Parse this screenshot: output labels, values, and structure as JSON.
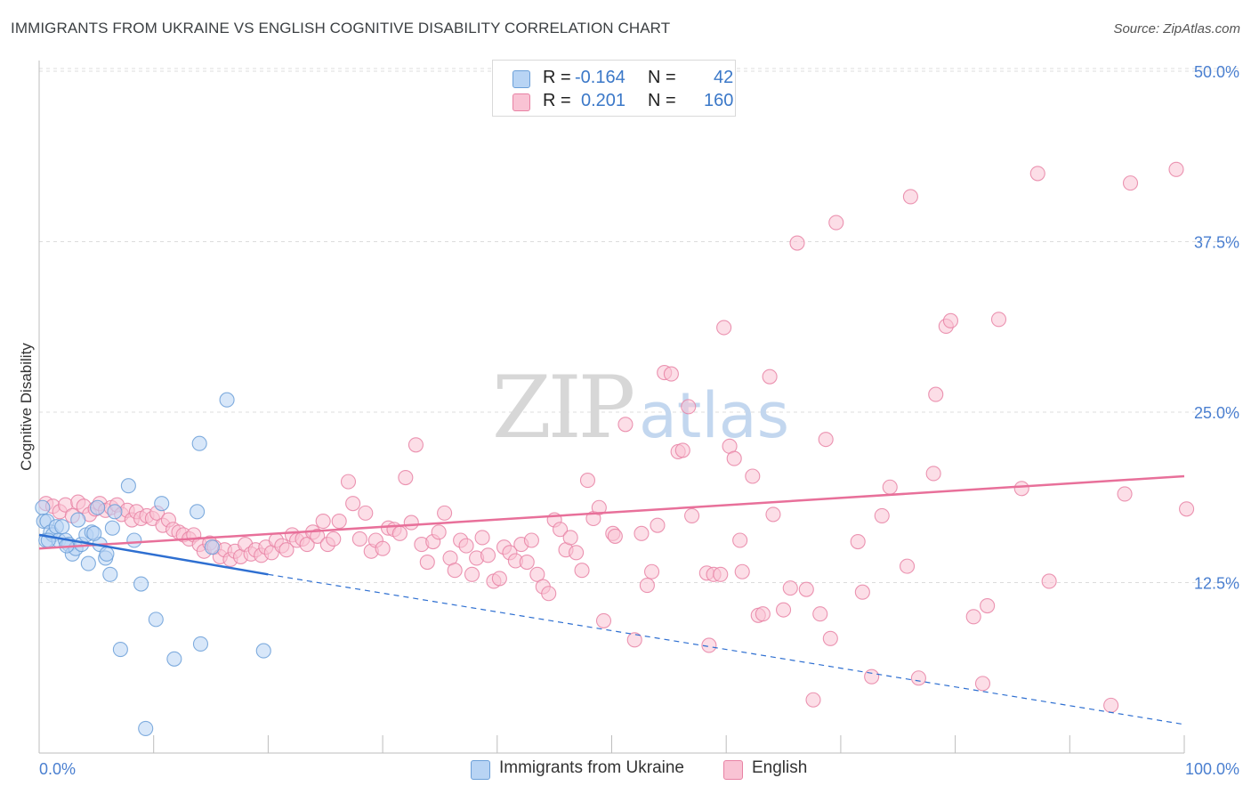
{
  "title": "IMMIGRANTS FROM UKRAINE VS ENGLISH COGNITIVE DISABILITY CORRELATION CHART",
  "source": "Source: ZipAtlas.com",
  "watermark": {
    "zip": "ZIP",
    "atlas": "atlas"
  },
  "legend": {
    "r_label": "R =",
    "n_label": "N =",
    "rows": [
      {
        "r": "-0.164",
        "n": "42",
        "color": "#b8d4f4",
        "border": "#6b9fd8"
      },
      {
        "r": "0.201",
        "n": "160",
        "color": "#f9c3d4",
        "border": "#e882a4"
      }
    ]
  },
  "bottom_legend": [
    {
      "label": "Immigrants from Ukraine",
      "color": "#b8d4f4",
      "border": "#6b9fd8"
    },
    {
      "label": "English",
      "color": "#f9c3d4",
      "border": "#e882a4"
    }
  ],
  "chart_data": {
    "type": "scatter",
    "title": "IMMIGRANTS FROM UKRAINE VS ENGLISH COGNITIVE DISABILITY CORRELATION CHART",
    "xlabel": "",
    "ylabel": "Cognitive Disability",
    "xlim": [
      0,
      100
    ],
    "ylim": [
      0,
      50
    ],
    "x_tick_labels": [
      "0.0%",
      "100.0%"
    ],
    "y_ticks": [
      12.5,
      25.0,
      37.5,
      50.0
    ],
    "y_tick_labels": [
      "12.5%",
      "25.0%",
      "37.5%",
      "50.0%"
    ],
    "grid": true,
    "legend_position": "top-center",
    "series": [
      {
        "name": "Immigrants from Ukraine",
        "color": "#6b9fd8",
        "fill": "#b8d4f4",
        "trend": {
          "x0": 0,
          "y0": 16.0,
          "x1": 20,
          "y1": 13.1,
          "dash_to_x": 100,
          "dash_to_y": 2.1,
          "color": "#2e6fd1"
        },
        "points": [
          [
            0.3,
            18.0
          ],
          [
            0.4,
            17.0
          ],
          [
            0.6,
            15.6
          ],
          [
            0.7,
            17.0
          ],
          [
            1.0,
            16.2
          ],
          [
            1.2,
            16.0
          ],
          [
            1.5,
            16.6
          ],
          [
            1.7,
            15.6
          ],
          [
            2.0,
            16.6
          ],
          [
            2.3,
            15.6
          ],
          [
            2.6,
            15.3
          ],
          [
            2.9,
            14.6
          ],
          [
            3.2,
            15.0
          ],
          [
            3.4,
            17.1
          ],
          [
            3.7,
            15.3
          ],
          [
            4.1,
            16.0
          ],
          [
            4.3,
            13.9
          ],
          [
            4.6,
            16.2
          ],
          [
            5.1,
            18.0
          ],
          [
            5.3,
            15.3
          ],
          [
            5.8,
            14.3
          ],
          [
            5.9,
            14.6
          ],
          [
            6.2,
            13.1
          ],
          [
            6.4,
            16.5
          ],
          [
            6.6,
            17.7
          ],
          [
            7.1,
            7.6
          ],
          [
            7.8,
            19.6
          ],
          [
            8.3,
            15.6
          ],
          [
            8.9,
            12.4
          ],
          [
            9.3,
            1.8
          ],
          [
            10.2,
            9.8
          ],
          [
            10.7,
            18.3
          ],
          [
            11.8,
            6.9
          ],
          [
            13.8,
            17.7
          ],
          [
            14.0,
            22.7
          ],
          [
            14.1,
            8.0
          ],
          [
            15.1,
            15.1
          ],
          [
            16.4,
            25.9
          ],
          [
            19.6,
            7.5
          ],
          [
            0.8,
            15.6
          ],
          [
            2.4,
            15.2
          ],
          [
            4.8,
            16.1
          ]
        ]
      },
      {
        "name": "English",
        "color": "#e882a4",
        "fill": "#f9c3d4",
        "trend": {
          "x0": 0,
          "y0": 15.0,
          "x1": 100,
          "y1": 20.3,
          "color": "#e8709a"
        },
        "points": [
          [
            0.6,
            18.3
          ],
          [
            1.2,
            18.1
          ],
          [
            1.8,
            17.7
          ],
          [
            2.3,
            18.2
          ],
          [
            2.9,
            17.4
          ],
          [
            3.4,
            18.4
          ],
          [
            3.9,
            18.1
          ],
          [
            4.4,
            17.5
          ],
          [
            4.9,
            17.9
          ],
          [
            5.3,
            18.3
          ],
          [
            5.8,
            17.8
          ],
          [
            6.3,
            18.0
          ],
          [
            6.8,
            18.2
          ],
          [
            7.2,
            17.5
          ],
          [
            7.7,
            17.8
          ],
          [
            8.1,
            17.1
          ],
          [
            8.5,
            17.7
          ],
          [
            8.9,
            17.2
          ],
          [
            9.4,
            17.4
          ],
          [
            9.9,
            17.2
          ],
          [
            10.3,
            17.6
          ],
          [
            10.8,
            16.7
          ],
          [
            11.3,
            17.1
          ],
          [
            11.7,
            16.4
          ],
          [
            12.2,
            16.2
          ],
          [
            12.6,
            16.0
          ],
          [
            13.1,
            15.7
          ],
          [
            13.5,
            16.0
          ],
          [
            14.0,
            15.3
          ],
          [
            14.4,
            14.8
          ],
          [
            14.9,
            15.4
          ],
          [
            15.3,
            15.1
          ],
          [
            15.8,
            14.4
          ],
          [
            16.2,
            14.9
          ],
          [
            16.7,
            14.2
          ],
          [
            17.1,
            14.8
          ],
          [
            17.6,
            14.4
          ],
          [
            18.0,
            15.3
          ],
          [
            18.5,
            14.6
          ],
          [
            18.9,
            14.9
          ],
          [
            19.4,
            14.5
          ],
          [
            19.8,
            15.1
          ],
          [
            20.3,
            14.7
          ],
          [
            20.7,
            15.6
          ],
          [
            21.2,
            15.2
          ],
          [
            21.6,
            14.9
          ],
          [
            22.1,
            16.0
          ],
          [
            22.5,
            15.6
          ],
          [
            23.0,
            15.7
          ],
          [
            23.4,
            15.3
          ],
          [
            23.9,
            16.2
          ],
          [
            24.3,
            15.9
          ],
          [
            24.8,
            17.0
          ],
          [
            25.2,
            15.3
          ],
          [
            25.7,
            15.7
          ],
          [
            26.2,
            17.0
          ],
          [
            27.0,
            19.9
          ],
          [
            27.4,
            18.3
          ],
          [
            28.0,
            15.7
          ],
          [
            28.5,
            17.6
          ],
          [
            29.0,
            14.8
          ],
          [
            29.4,
            15.6
          ],
          [
            30.0,
            15.0
          ],
          [
            30.5,
            16.5
          ],
          [
            31.0,
            16.4
          ],
          [
            31.5,
            16.1
          ],
          [
            32.0,
            20.2
          ],
          [
            32.5,
            16.9
          ],
          [
            32.9,
            22.6
          ],
          [
            33.4,
            15.3
          ],
          [
            33.9,
            14.0
          ],
          [
            34.4,
            15.5
          ],
          [
            34.9,
            16.2
          ],
          [
            35.4,
            17.6
          ],
          [
            35.9,
            14.3
          ],
          [
            36.3,
            13.4
          ],
          [
            36.8,
            15.6
          ],
          [
            37.3,
            15.2
          ],
          [
            37.8,
            13.1
          ],
          [
            38.2,
            14.3
          ],
          [
            38.7,
            15.8
          ],
          [
            39.2,
            14.5
          ],
          [
            39.7,
            12.6
          ],
          [
            40.2,
            12.8
          ],
          [
            40.6,
            15.1
          ],
          [
            41.1,
            14.7
          ],
          [
            41.6,
            14.1
          ],
          [
            42.1,
            15.3
          ],
          [
            42.6,
            14.0
          ],
          [
            43.0,
            15.6
          ],
          [
            43.5,
            13.1
          ],
          [
            44.0,
            12.2
          ],
          [
            44.5,
            11.7
          ],
          [
            45.0,
            17.1
          ],
          [
            45.5,
            16.4
          ],
          [
            46.0,
            14.9
          ],
          [
            46.4,
            15.8
          ],
          [
            46.9,
            14.7
          ],
          [
            47.4,
            13.4
          ],
          [
            47.9,
            20.0
          ],
          [
            48.4,
            17.2
          ],
          [
            48.9,
            18.0
          ],
          [
            49.3,
            9.7
          ],
          [
            50.1,
            16.1
          ],
          [
            50.3,
            15.9
          ],
          [
            51.2,
            24.1
          ],
          [
            52.0,
            8.3
          ],
          [
            52.6,
            16.1
          ],
          [
            53.1,
            12.3
          ],
          [
            53.5,
            13.3
          ],
          [
            54.0,
            16.7
          ],
          [
            54.6,
            27.9
          ],
          [
            55.2,
            27.8
          ],
          [
            55.8,
            22.1
          ],
          [
            56.2,
            22.2
          ],
          [
            56.7,
            25.4
          ],
          [
            57.0,
            17.4
          ],
          [
            58.3,
            13.2
          ],
          [
            58.5,
            7.9
          ],
          [
            58.9,
            13.1
          ],
          [
            59.5,
            13.1
          ],
          [
            59.8,
            31.2
          ],
          [
            60.3,
            22.5
          ],
          [
            60.7,
            21.6
          ],
          [
            61.2,
            15.6
          ],
          [
            61.4,
            13.3
          ],
          [
            62.3,
            20.3
          ],
          [
            62.8,
            10.1
          ],
          [
            63.2,
            10.2
          ],
          [
            63.8,
            27.6
          ],
          [
            64.1,
            17.5
          ],
          [
            65.0,
            10.5
          ],
          [
            65.6,
            12.1
          ],
          [
            66.2,
            37.4
          ],
          [
            67.0,
            12.0
          ],
          [
            67.6,
            3.9
          ],
          [
            68.2,
            10.2
          ],
          [
            68.7,
            23.0
          ],
          [
            69.1,
            8.4
          ],
          [
            69.6,
            38.9
          ],
          [
            71.5,
            15.5
          ],
          [
            71.9,
            11.8
          ],
          [
            72.7,
            5.6
          ],
          [
            73.6,
            17.4
          ],
          [
            74.3,
            19.5
          ],
          [
            75.8,
            13.7
          ],
          [
            76.1,
            40.8
          ],
          [
            76.8,
            5.5
          ],
          [
            78.1,
            20.5
          ],
          [
            78.3,
            26.3
          ],
          [
            79.2,
            31.3
          ],
          [
            79.6,
            31.7
          ],
          [
            81.6,
            10.0
          ],
          [
            82.4,
            5.1
          ],
          [
            82.8,
            10.8
          ],
          [
            83.8,
            31.8
          ],
          [
            85.8,
            19.4
          ],
          [
            87.2,
            42.5
          ],
          [
            88.2,
            12.6
          ],
          [
            93.6,
            3.5
          ],
          [
            94.8,
            19.0
          ],
          [
            95.3,
            41.8
          ],
          [
            99.3,
            42.8
          ],
          [
            100.2,
            17.9
          ]
        ]
      }
    ]
  }
}
